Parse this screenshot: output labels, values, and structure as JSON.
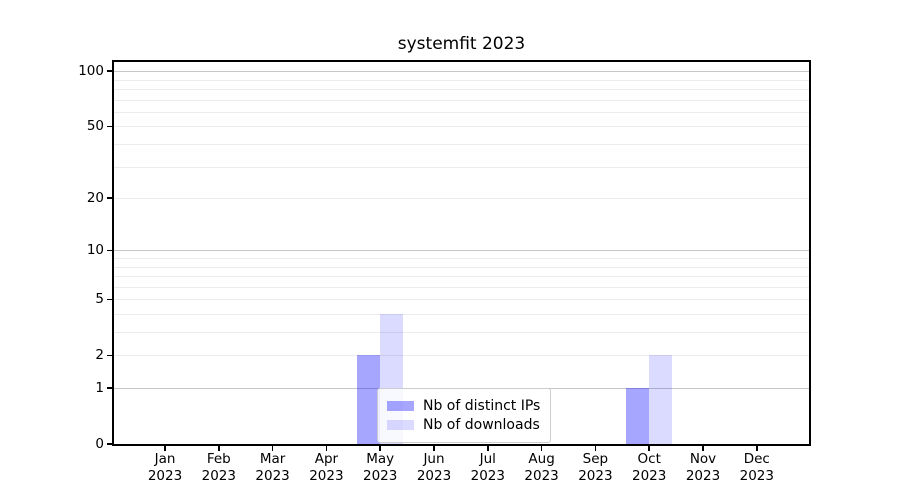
{
  "figure": {
    "background": "#ffffff",
    "text_color": "#000000",
    "spine_color": "#000000"
  },
  "chart_data": {
    "type": "bar",
    "title": "systemfit 2023",
    "xlabel": "",
    "ylabel": "",
    "categories": [
      "Jan",
      "Feb",
      "Mar",
      "Apr",
      "May",
      "Jun",
      "Jul",
      "Aug",
      "Sep",
      "Oct",
      "Nov",
      "Dec"
    ],
    "category_year": "2023",
    "series": [
      {
        "name": "Nb of distinct IPs",
        "color": "rgba(0,0,255,0.35)",
        "values": [
          0,
          0,
          0,
          0,
          2,
          0,
          0,
          0,
          0,
          1,
          0,
          0
        ]
      },
      {
        "name": "Nb of downloads",
        "color": "rgba(0,0,255,0.14)",
        "values": [
          0,
          0,
          0,
          0,
          4,
          0,
          0,
          0,
          0,
          2,
          0,
          0
        ]
      }
    ],
    "yscale": "log10(1+x)",
    "yticks": [
      0,
      1,
      2,
      5,
      10,
      20,
      50,
      100
    ],
    "ylim": [
      0,
      115
    ],
    "grid": {
      "major_values": [
        1,
        10,
        100
      ],
      "minor_values": [
        2,
        3,
        4,
        5,
        6,
        7,
        8,
        9,
        20,
        30,
        40,
        50,
        60,
        70,
        80,
        90
      ],
      "major_color": "#c6c6c6",
      "minor_color": "#ececec"
    },
    "legend": {
      "position": "lower center inside",
      "entries": [
        "Nb of distinct IPs",
        "Nb of downloads"
      ]
    }
  }
}
